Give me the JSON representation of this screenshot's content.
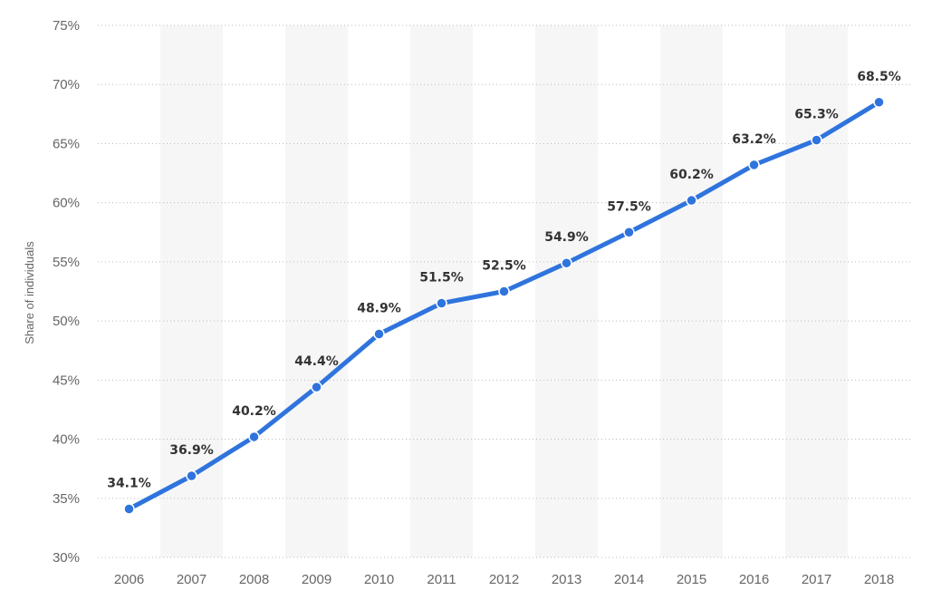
{
  "chart_data": {
    "type": "line",
    "title": "",
    "xlabel": "",
    "ylabel": "Share of individuals",
    "categories": [
      "2006",
      "2007",
      "2008",
      "2009",
      "2010",
      "2011",
      "2012",
      "2013",
      "2014",
      "2015",
      "2016",
      "2017",
      "2018"
    ],
    "series": [
      {
        "values": [
          34.1,
          36.9,
          40.2,
          44.4,
          48.9,
          51.5,
          52.5,
          54.9,
          57.5,
          60.2,
          63.2,
          65.3,
          68.5
        ],
        "labels": [
          "34.1%",
          "36.9%",
          "40.2%",
          "44.4%",
          "48.9%",
          "51.5%",
          "52.5%",
          "54.9%",
          "57.5%",
          "60.2%",
          "63.2%",
          "65.3%",
          "68.5%"
        ],
        "color": "#2f74dd"
      }
    ],
    "ylim": [
      30,
      75
    ],
    "yticks": [
      30,
      35,
      40,
      45,
      50,
      55,
      60,
      65,
      70,
      75
    ],
    "ytick_labels": [
      "30%",
      "35%",
      "40%",
      "45%",
      "50%",
      "55%",
      "60%",
      "65%",
      "70%",
      "75%"
    ],
    "grid": "horizontal dotted",
    "legend": "none",
    "band_color": "#f6f6f6",
    "grid_color": "#bbbbbb"
  }
}
